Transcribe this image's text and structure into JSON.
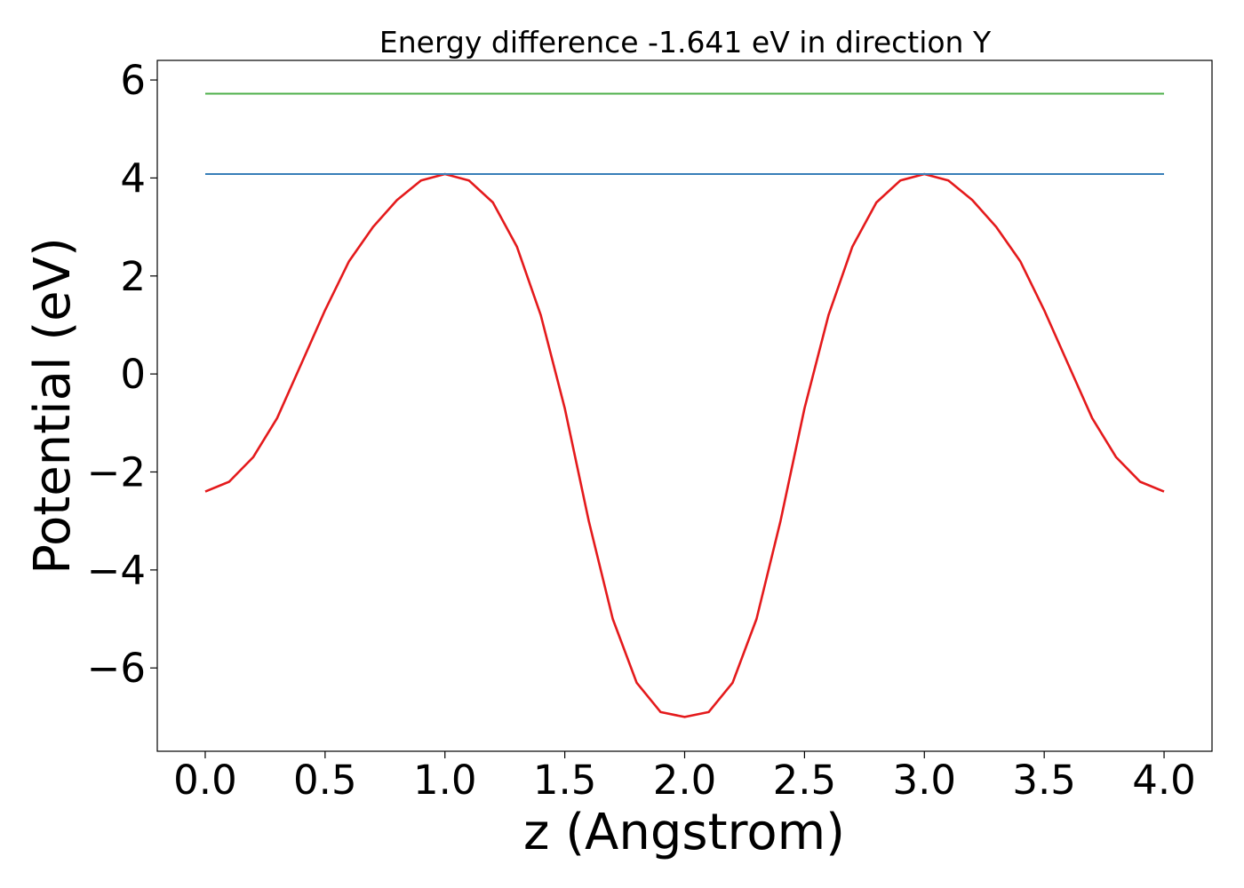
{
  "chart_data": {
    "type": "line",
    "title": "Energy difference -1.641 eV in direction Y",
    "xlabel": "z (Angstrom)",
    "ylabel": "Potential (eV)",
    "xlim": [
      -0.2,
      4.2
    ],
    "ylim": [
      -7.7,
      6.4
    ],
    "xticks": [
      0.0,
      0.5,
      1.0,
      1.5,
      2.0,
      2.5,
      3.0,
      3.5,
      4.0
    ],
    "xtick_labels": [
      "0.0",
      "0.5",
      "1.0",
      "1.5",
      "2.0",
      "2.5",
      "3.0",
      "3.5",
      "4.0"
    ],
    "yticks": [
      -6,
      -4,
      -2,
      0,
      2,
      4,
      6
    ],
    "ytick_labels": [
      "−6",
      "−4",
      "−2",
      "0",
      "2",
      "4",
      "6"
    ],
    "grid": false,
    "series": [
      {
        "color": "#e41a1c",
        "x": [
          0.0,
          0.1,
          0.2,
          0.3,
          0.4,
          0.5,
          0.6,
          0.7,
          0.8,
          0.9,
          1.0,
          1.1,
          1.2,
          1.3,
          1.4,
          1.5,
          1.6,
          1.7,
          1.8,
          1.9,
          2.0,
          2.1,
          2.2,
          2.3,
          2.4,
          2.5,
          2.6,
          2.7,
          2.8,
          2.9,
          3.0,
          3.1,
          3.2,
          3.3,
          3.4,
          3.5,
          3.6,
          3.7,
          3.8,
          3.9,
          4.0
        ],
        "y": [
          -2.4,
          -2.2,
          -1.7,
          -0.9,
          0.2,
          1.3,
          2.3,
          3.0,
          3.55,
          3.95,
          4.08,
          3.95,
          3.5,
          2.6,
          1.2,
          -0.7,
          -3.0,
          -5.0,
          -6.3,
          -6.9,
          -7.0,
          -6.9,
          -6.3,
          -5.0,
          -3.0,
          -0.7,
          1.2,
          2.6,
          3.5,
          3.95,
          4.08,
          3.95,
          3.55,
          3.0,
          2.3,
          1.3,
          0.2,
          -0.9,
          -1.7,
          -2.2,
          -2.4
        ]
      },
      {
        "color": "#377eb8",
        "x": [
          0.0,
          4.0
        ],
        "y": [
          4.08,
          4.08
        ]
      },
      {
        "color": "#4daf4a",
        "x": [
          0.0,
          4.0
        ],
        "y": [
          5.72,
          5.72
        ]
      }
    ]
  }
}
